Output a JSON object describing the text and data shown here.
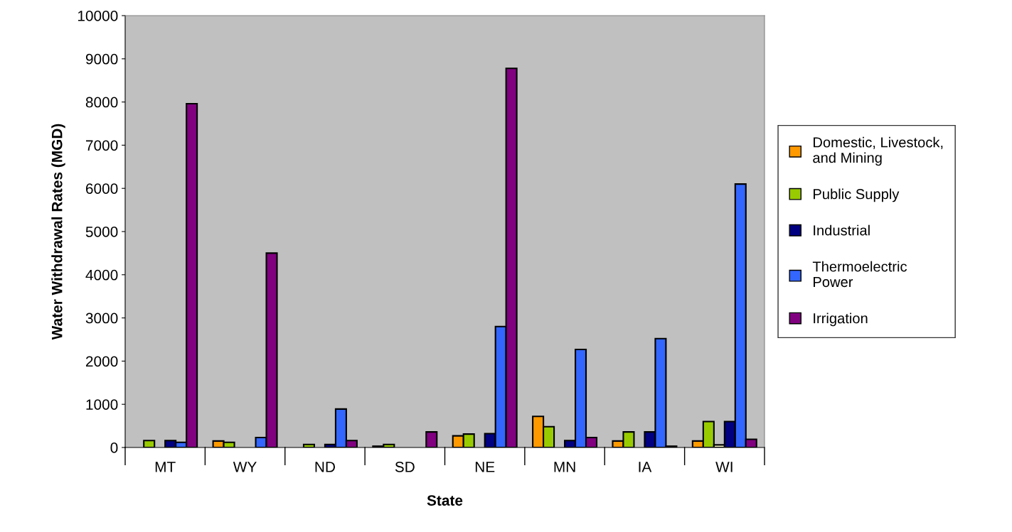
{
  "chart_data": {
    "type": "bar",
    "xlabel": "State",
    "ylabel": "Water Withdrawal Rates (MGD)",
    "categories": [
      "MT",
      "WY",
      "ND",
      "SD",
      "NE",
      "MN",
      "IA",
      "WI"
    ],
    "series": [
      {
        "name": "Domestic, Livestock,\nand Mining",
        "color": "#ff9900",
        "values": [
          null,
          150,
          null,
          30,
          270,
          720,
          150,
          150
        ]
      },
      {
        "name": "Public Supply",
        "color": "#99cc00",
        "values": [
          160,
          120,
          70,
          70,
          310,
          480,
          360,
          600
        ]
      },
      {
        "color": "#ffffcc",
        "values": [
          null,
          null,
          null,
          null,
          null,
          null,
          null,
          60
        ]
      },
      {
        "name": "Industrial",
        "color": "#000080",
        "values": [
          160,
          null,
          70,
          null,
          320,
          160,
          360,
          600
        ]
      },
      {
        "name": "Thermoelectric\nPower",
        "color": "#3366ff",
        "values": [
          120,
          230,
          890,
          null,
          2800,
          2270,
          2520,
          6100
        ]
      },
      {
        "name": "Irrigation",
        "color": "#800080",
        "values": [
          7960,
          4500,
          160,
          360,
          8780,
          230,
          30,
          190
        ]
      }
    ],
    "ylim": [
      0,
      10000
    ],
    "yticks": [
      0,
      1000,
      2000,
      3000,
      4000,
      5000,
      6000,
      7000,
      8000,
      9000,
      10000
    ],
    "grid": false,
    "legend": "right"
  }
}
